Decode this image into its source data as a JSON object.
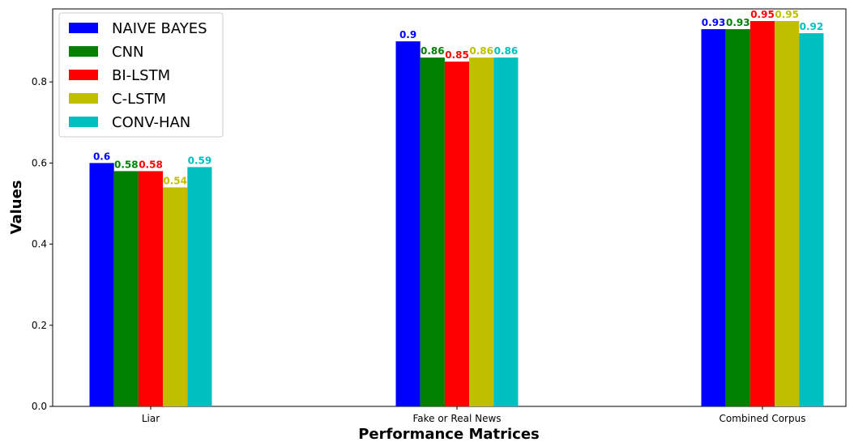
{
  "chart_data": {
    "type": "bar",
    "categories": [
      "Liar",
      "Fake or Real News",
      "Combined Corpus"
    ],
    "series": [
      {
        "name": "NAIVE BAYES",
        "color": "#0000ff",
        "values": [
          0.6,
          0.9,
          0.93
        ]
      },
      {
        "name": "CNN",
        "color": "#008000",
        "values": [
          0.58,
          0.86,
          0.93
        ]
      },
      {
        "name": "BI-LSTM",
        "color": "#ff0000",
        "values": [
          0.58,
          0.85,
          0.95
        ]
      },
      {
        "name": "C-LSTM",
        "color": "#bfbf00",
        "values": [
          0.54,
          0.86,
          0.95
        ]
      },
      {
        "name": "CONV-HAN",
        "color": "#00bfbf",
        "values": [
          0.59,
          0.86,
          0.92
        ]
      }
    ],
    "xlabel": "Performance Matrices",
    "ylabel": "Values",
    "ylim": [
      0,
      0.98
    ],
    "yticks": [
      "0.0",
      "0.2",
      "0.4",
      "0.6",
      "0.8"
    ],
    "grid": false,
    "legend_position": "top-left"
  }
}
